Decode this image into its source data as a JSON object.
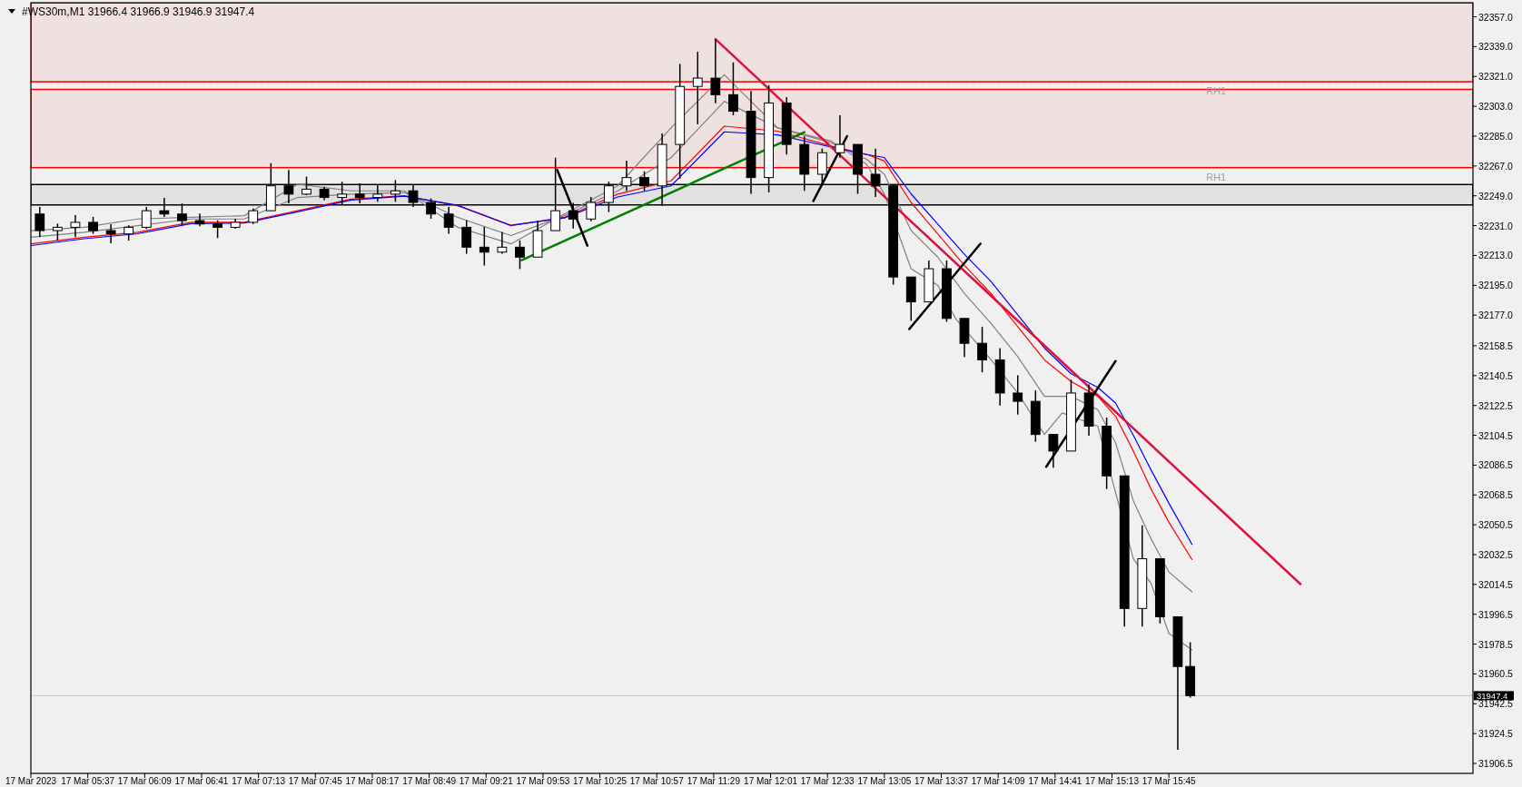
{
  "chart_data": {
    "type": "candlestick",
    "title": "#WS30m,M1  31966.4 31966.9 31946.9 31947.4",
    "color": "#000000",
    "grid": false,
    "xlim": [
      "2023-03-17T05:05",
      "2023-03-17T18:36"
    ],
    "xticks": [
      {
        "value": "2023-03-17T05:05",
        "label": "17 Mar 2023"
      },
      {
        "value": "2023-03-17T05:37",
        "label": "17 Mar 05:37"
      },
      {
        "value": "2023-03-17T06:09",
        "label": "17 Mar 06:09"
      },
      {
        "value": "2023-03-17T06:41",
        "label": "17 Mar 06:41"
      },
      {
        "value": "2023-03-17T07:13",
        "label": "17 Mar 07:13"
      },
      {
        "value": "2023-03-17T07:45",
        "label": "17 Mar 07:45"
      },
      {
        "value": "2023-03-17T08:17",
        "label": "17 Mar 08:17"
      },
      {
        "value": "2023-03-17T08:49",
        "label": "17 Mar 08:49"
      },
      {
        "value": "2023-03-17T09:21",
        "label": "17 Mar 09:21"
      },
      {
        "value": "2023-03-17T09:53",
        "label": "17 Mar 09:53"
      },
      {
        "value": "2023-03-17T10:25",
        "label": "17 Mar 10:25"
      },
      {
        "value": "2023-03-17T10:57",
        "label": "17 Mar 10:57"
      },
      {
        "value": "2023-03-17T11:29",
        "label": "17 Mar 11:29"
      },
      {
        "value": "2023-03-17T12:01",
        "label": "17 Mar 12:01"
      },
      {
        "value": "2023-03-17T12:33",
        "label": "17 Mar 12:33"
      },
      {
        "value": "2023-03-17T13:05",
        "label": "17 Mar 13:05"
      },
      {
        "value": "2023-03-17T13:37",
        "label": "17 Mar 13:37"
      },
      {
        "value": "2023-03-17T14:09",
        "label": "17 Mar 14:09"
      },
      {
        "value": "2023-03-17T14:41",
        "label": "17 Mar 14:41"
      },
      {
        "value": "2023-03-17T15:13",
        "label": "17 Mar 15:13"
      },
      {
        "value": "2023-03-17T15:45",
        "label": "17 Mar 15:45"
      }
    ],
    "ylim": [
      31900.5,
      32365.5
    ],
    "yticks": [
      {
        "value": 32357,
        "label": "32357.0"
      },
      {
        "value": 32339,
        "label": "32339.0"
      },
      {
        "value": 32321,
        "label": "32321.0"
      },
      {
        "value": 32303,
        "label": "32303.0"
      },
      {
        "value": 32285,
        "label": "32285.0"
      },
      {
        "value": 32267,
        "label": "32267.0"
      },
      {
        "value": 32249,
        "label": "32249.0"
      },
      {
        "value": 32231,
        "label": "32231.0"
      },
      {
        "value": 32213,
        "label": "32213.0"
      },
      {
        "value": 32195,
        "label": "32195.0"
      },
      {
        "value": 32177,
        "label": "32177.0"
      },
      32158.5,
      32140.5,
      32122.5,
      32104.5,
      32086.5,
      32068.5,
      32050.5,
      32032.5,
      32014.5,
      31996.5,
      31978.5,
      31960.5,
      31942.5,
      31924.5,
      31906.5
    ],
    "bands": [
      {
        "axis": "y",
        "from": 32317.8,
        "to": 32365.5,
        "color": "#ff0000"
      },
      {
        "axis": "y",
        "from": 32266,
        "to": 32313.2,
        "color": "#ff0000"
      },
      {
        "axis": "y",
        "from": 32243.5,
        "to": 32255.8,
        "color": "#000000"
      }
    ],
    "ref_lines": [
      {
        "axis": "y",
        "value": 32317.8,
        "label": "RH1",
        "color": "#a0a0a0",
        "line_style": "dashed"
      },
      {
        "axis": "y",
        "value": 32266,
        "label": "RH1",
        "color": "#a0a0a0",
        "line_style": "dashed"
      },
      {
        "axis": "y",
        "value": 31947.4,
        "label": "31947.4",
        "color": "#c8c8c8",
        "line_style": "solid"
      }
    ],
    "x": [
      "2023-03-17T05:10",
      "2023-03-17T05:20",
      "2023-03-17T05:30",
      "2023-03-17T05:40",
      "2023-03-17T05:50",
      "2023-03-17T06:00",
      "2023-03-17T06:10",
      "2023-03-17T06:20",
      "2023-03-17T06:30",
      "2023-03-17T06:40",
      "2023-03-17T06:50",
      "2023-03-17T07:00",
      "2023-03-17T07:10",
      "2023-03-17T07:20",
      "2023-03-17T07:30",
      "2023-03-17T07:40",
      "2023-03-17T07:50",
      "2023-03-17T08:00",
      "2023-03-17T08:10",
      "2023-03-17T08:20",
      "2023-03-17T08:30",
      "2023-03-17T08:40",
      "2023-03-17T08:50",
      "2023-03-17T09:00",
      "2023-03-17T09:10",
      "2023-03-17T09:20",
      "2023-03-17T09:30",
      "2023-03-17T09:40",
      "2023-03-17T09:50",
      "2023-03-17T10:00",
      "2023-03-17T10:10",
      "2023-03-17T10:20",
      "2023-03-17T10:30",
      "2023-03-17T10:40",
      "2023-03-17T10:50",
      "2023-03-17T11:00",
      "2023-03-17T11:10",
      "2023-03-17T11:20",
      "2023-03-17T11:30",
      "2023-03-17T11:40",
      "2023-03-17T11:50",
      "2023-03-17T12:00",
      "2023-03-17T12:10",
      "2023-03-17T12:20",
      "2023-03-17T12:30",
      "2023-03-17T12:40",
      "2023-03-17T12:50",
      "2023-03-17T13:00",
      "2023-03-17T13:10",
      "2023-03-17T13:20",
      "2023-03-17T13:30",
      "2023-03-17T13:40",
      "2023-03-17T13:50",
      "2023-03-17T14:00",
      "2023-03-17T14:10",
      "2023-03-17T14:20",
      "2023-03-17T14:30",
      "2023-03-17T14:40",
      "2023-03-17T14:50",
      "2023-03-17T15:00",
      "2023-03-17T15:10",
      "2023-03-17T15:20",
      "2023-03-17T15:30",
      "2023-03-17T15:40",
      "2023-03-17T15:50",
      "2023-03-17T15:57"
    ],
    "ohlc": [
      [
        32238,
        32242.3,
        32224.1,
        32228
      ],
      [
        32228,
        32232.2,
        32222,
        32230
      ],
      [
        32230,
        32237.3,
        32224.1,
        32233
      ],
      [
        32233,
        32236.3,
        32226.1,
        32228
      ],
      [
        32228,
        32231.8,
        32220.4,
        32226
      ],
      [
        32226,
        32231.2,
        32222,
        32230
      ],
      [
        32230,
        32242.3,
        32229,
        32240
      ],
      [
        32240,
        32247.8,
        32236.3,
        32238
      ],
      [
        32238,
        32244.4,
        32231.2,
        32234
      ],
      [
        32234,
        32238.3,
        32230.6,
        32232
      ],
      [
        32232,
        32234.2,
        32223.5,
        32230
      ],
      [
        32230,
        32235.2,
        32229.1,
        32233
      ],
      [
        32233,
        32241.3,
        32232,
        32240
      ],
      [
        32240,
        32268.7,
        32240,
        32255
      ],
      [
        32255,
        32264.6,
        32244.4,
        32250
      ],
      [
        32250,
        32260.6,
        32249.4,
        32253
      ],
      [
        32253,
        32254.5,
        32246.4,
        32248
      ],
      [
        32248,
        32257.5,
        32243.3,
        32250
      ],
      [
        32250,
        32256.5,
        32244.4,
        32248
      ],
      [
        32248,
        32255.5,
        32245.4,
        32250
      ],
      [
        32250,
        32258.5,
        32245.4,
        32252
      ],
      [
        32252,
        32255.5,
        32242.3,
        32245
      ],
      [
        32245,
        32247.4,
        32235.2,
        32238
      ],
      [
        32238,
        32242.3,
        32226.1,
        32230
      ],
      [
        32230,
        32234.2,
        32214,
        32218
      ],
      [
        32218,
        32230.2,
        32206.9,
        32215
      ],
      [
        32215,
        32227.1,
        32214,
        32218
      ],
      [
        32218,
        32222.1,
        32204.8,
        32212
      ],
      [
        32212,
        32233.7,
        32212,
        32228
      ],
      [
        32228,
        32272,
        32228,
        32240
      ],
      [
        32240,
        32244.7,
        32229.2,
        32235
      ],
      [
        32235,
        32248.3,
        32233.7,
        32245
      ],
      [
        32245,
        32257.5,
        32239.2,
        32255
      ],
      [
        32255,
        32270.2,
        32252,
        32260
      ],
      [
        32260,
        32263.8,
        32252,
        32255
      ],
      [
        32255,
        32286.6,
        32242.9,
        32280
      ],
      [
        32280,
        32328.6,
        32259.3,
        32315
      ],
      [
        32315,
        32335.9,
        32292.1,
        32320
      ],
      [
        32320,
        32343.2,
        32304.9,
        32310
      ],
      [
        32310,
        32329.5,
        32297.6,
        32300
      ],
      [
        32300,
        32312.2,
        32250.2,
        32260
      ],
      [
        32260,
        32315.8,
        32251.1,
        32305
      ],
      [
        32305,
        32308.5,
        32273.9,
        32280
      ],
      [
        32280,
        32284.8,
        32252,
        32262
      ],
      [
        32262,
        32277.5,
        32255.6,
        32275
      ],
      [
        32275,
        32297.6,
        32272,
        32280
      ],
      [
        32280,
        32280,
        32250.2,
        32262
      ],
      [
        32262,
        32277.5,
        32248.3,
        32255
      ],
      [
        32255,
        32255.6,
        32195.4,
        32200
      ],
      [
        32200,
        32200,
        32173.6,
        32185
      ],
      [
        32185,
        32210,
        32185,
        32205
      ],
      [
        32205,
        32210,
        32173,
        32175
      ],
      [
        32175,
        32175,
        32151.7,
        32160
      ],
      [
        32160,
        32169.9,
        32142.5,
        32150
      ],
      [
        32150,
        32157.1,
        32122.5,
        32130
      ],
      [
        32130,
        32140.7,
        32117,
        32125
      ],
      [
        32125,
        32131.6,
        32100.6,
        32105
      ],
      [
        32105,
        32105,
        32085,
        32095
      ],
      [
        32095,
        32138,
        32095,
        32130
      ],
      [
        32130,
        32135.2,
        32104.2,
        32110
      ],
      [
        32110,
        32115.2,
        32072.1,
        32080
      ],
      [
        32080,
        32080,
        31989.1,
        32000
      ],
      [
        32000,
        32050.1,
        31989.1,
        32030
      ],
      [
        32030,
        32030,
        31991,
        31995
      ],
      [
        31995,
        31995,
        31914.8,
        31965
      ],
      [
        31965,
        31979.6,
        31946.2,
        31947.4
      ]
    ],
    "series": [
      {
        "type": "line",
        "color": "#808080",
        "x": [
          "2023-03-17T05:05",
          "2023-03-17T05:35",
          "2023-03-17T06:05",
          "2023-03-17T06:35",
          "2023-03-17T07:05",
          "2023-03-17T07:35",
          "2023-03-17T08:05",
          "2023-03-17T08:35",
          "2023-03-17T09:05",
          "2023-03-17T09:35",
          "2023-03-17T10:05",
          "2023-03-17T10:35",
          "2023-03-17T11:05",
          "2023-03-17T11:35",
          "2023-03-17T12:05",
          "2023-03-17T12:35",
          "2023-03-17T12:55",
          "2023-03-17T13:05",
          "2023-03-17T13:20",
          "2023-03-17T13:35",
          "2023-03-17T13:45",
          "2023-03-17T14:05",
          "2023-03-17T14:20",
          "2023-03-17T14:35",
          "2023-03-17T14:45",
          "2023-03-17T15:05",
          "2023-03-17T15:15",
          "2023-03-17T15:25",
          "2023-03-17T15:35",
          "2023-03-17T15:45",
          "2023-03-17T15:58"
        ],
        "values": [
          32228,
          32230,
          32235,
          32236,
          32237,
          32256,
          32252,
          32252,
          32230,
          32220,
          32238,
          32255,
          32290,
          32322,
          32290,
          32282,
          32268,
          32250,
          32205,
          32195,
          32175,
          32150,
          32130,
          32105,
          32118,
          32110,
          32070,
          32030,
          32015,
          31985,
          31975
        ]
      },
      {
        "type": "line",
        "color": "#808080",
        "x": [
          "2023-03-17T05:05",
          "2023-03-17T05:35",
          "2023-03-17T06:05",
          "2023-03-17T06:35",
          "2023-03-17T07:05",
          "2023-03-17T07:35",
          "2023-03-17T08:05",
          "2023-03-17T08:35",
          "2023-03-17T09:05",
          "2023-03-17T09:35",
          "2023-03-17T10:05",
          "2023-03-17T10:35",
          "2023-03-17T11:05",
          "2023-03-17T11:35",
          "2023-03-17T12:05",
          "2023-03-17T12:35",
          "2023-03-17T12:55",
          "2023-03-17T13:05",
          "2023-03-17T13:20",
          "2023-03-17T13:35",
          "2023-03-17T13:50",
          "2023-03-17T14:05",
          "2023-03-17T14:20",
          "2023-03-17T14:35",
          "2023-03-17T14:50",
          "2023-03-17T15:05",
          "2023-03-17T15:15",
          "2023-03-17T15:25",
          "2023-03-17T15:35",
          "2023-03-17T15:45",
          "2023-03-17T15:58"
        ],
        "values": [
          32224,
          32227,
          32231,
          32235,
          32235,
          32248,
          32250,
          32251,
          32236,
          32225,
          32237,
          32252,
          32272,
          32306,
          32290,
          32281,
          32271,
          32262,
          32228,
          32212,
          32190,
          32172,
          32152,
          32128,
          32128,
          32120,
          32100,
          32065,
          32042,
          32022,
          32010
        ]
      },
      {
        "type": "line",
        "color": "#ff0000",
        "x": [
          "2023-03-17T05:05",
          "2023-03-17T05:35",
          "2023-03-17T06:05",
          "2023-03-17T06:35",
          "2023-03-17T07:05",
          "2023-03-17T07:35",
          "2023-03-17T08:05",
          "2023-03-17T08:35",
          "2023-03-17T09:05",
          "2023-03-17T09:35",
          "2023-03-17T10:05",
          "2023-03-17T10:35",
          "2023-03-17T11:05",
          "2023-03-17T11:35",
          "2023-03-17T12:05",
          "2023-03-17T12:35",
          "2023-03-17T12:55",
          "2023-03-17T13:05",
          "2023-03-17T13:20",
          "2023-03-17T13:35",
          "2023-03-17T13:50",
          "2023-03-17T14:05",
          "2023-03-17T14:20",
          "2023-03-17T14:35",
          "2023-03-17T14:50",
          "2023-03-17T15:05",
          "2023-03-17T15:15",
          "2023-03-17T15:25",
          "2023-03-17T15:35",
          "2023-03-17T15:45",
          "2023-03-17T15:58"
        ],
        "values": [
          32220,
          32224,
          32227,
          32233,
          32233,
          32240,
          32247,
          32249,
          32243,
          32231,
          32236,
          32250,
          32258,
          32291,
          32288,
          32279,
          32274,
          32270,
          32245,
          32226,
          32207,
          32190,
          32170,
          32150,
          32137,
          32128,
          32116,
          32095,
          32072,
          32052,
          32029.5
        ]
      },
      {
        "type": "line",
        "color": "#0000ff",
        "x": [
          "2023-03-17T05:05",
          "2023-03-17T05:35",
          "2023-03-17T06:05",
          "2023-03-17T06:35",
          "2023-03-17T07:05",
          "2023-03-17T07:35",
          "2023-03-17T08:05",
          "2023-03-17T08:35",
          "2023-03-17T09:05",
          "2023-03-17T09:35",
          "2023-03-17T10:05",
          "2023-03-17T10:35",
          "2023-03-17T11:05",
          "2023-03-17T11:35",
          "2023-03-17T12:05",
          "2023-03-17T12:35",
          "2023-03-17T12:55",
          "2023-03-17T13:05",
          "2023-03-17T13:20",
          "2023-03-17T13:35",
          "2023-03-17T13:50",
          "2023-03-17T14:05",
          "2023-03-17T14:20",
          "2023-03-17T14:35",
          "2023-03-17T14:50",
          "2023-03-17T15:05",
          "2023-03-17T15:15",
          "2023-03-17T15:25",
          "2023-03-17T15:35",
          "2023-03-17T15:45",
          "2023-03-17T15:58"
        ],
        "values": [
          32219,
          32223.1,
          32226.1,
          32232.2,
          32232.6,
          32239.3,
          32246.4,
          32248.8,
          32243.3,
          32231.2,
          32235.6,
          32248.3,
          32255,
          32287.6,
          32285.7,
          32278.4,
          32273.9,
          32272.1,
          32250.2,
          32231.9,
          32213.7,
          32197.3,
          32177.2,
          32157.1,
          32141.6,
          32133.4,
          32124,
          32104.5,
          32083.5,
          32063.5,
          32038.7
        ]
      },
      {
        "type": "line",
        "color": "#dc143c",
        "x": [
          "2023-03-17T11:30",
          "2023-03-17T16:59"
        ],
        "values": [
          32343.5,
          32014.7
        ]
      },
      {
        "type": "line",
        "color": "#008000",
        "x": [
          "2023-03-17T09:41",
          "2023-03-17T12:20"
        ],
        "values": [
          32210.1,
          32287.4
        ]
      },
      {
        "type": "line",
        "color": "#000000",
        "x": [
          "2023-03-17T10:01",
          "2023-03-17T10:18"
        ],
        "values": [
          32264.6,
          32218.9
        ]
      },
      {
        "type": "line",
        "color": "#000000",
        "x": [
          "2023-03-17T12:25",
          "2023-03-17T12:44"
        ],
        "values": [
          32245.8,
          32285
        ]
      },
      {
        "type": "line",
        "color": "#000000",
        "x": [
          "2023-03-17T13:19",
          "2023-03-17T13:59"
        ],
        "values": [
          32168.6,
          32220.1
        ]
      },
      {
        "type": "line",
        "color": "#000000",
        "x": [
          "2023-03-17T14:36",
          "2023-03-17T15:15"
        ],
        "values": [
          32085.5,
          32149.3
        ]
      }
    ]
  }
}
